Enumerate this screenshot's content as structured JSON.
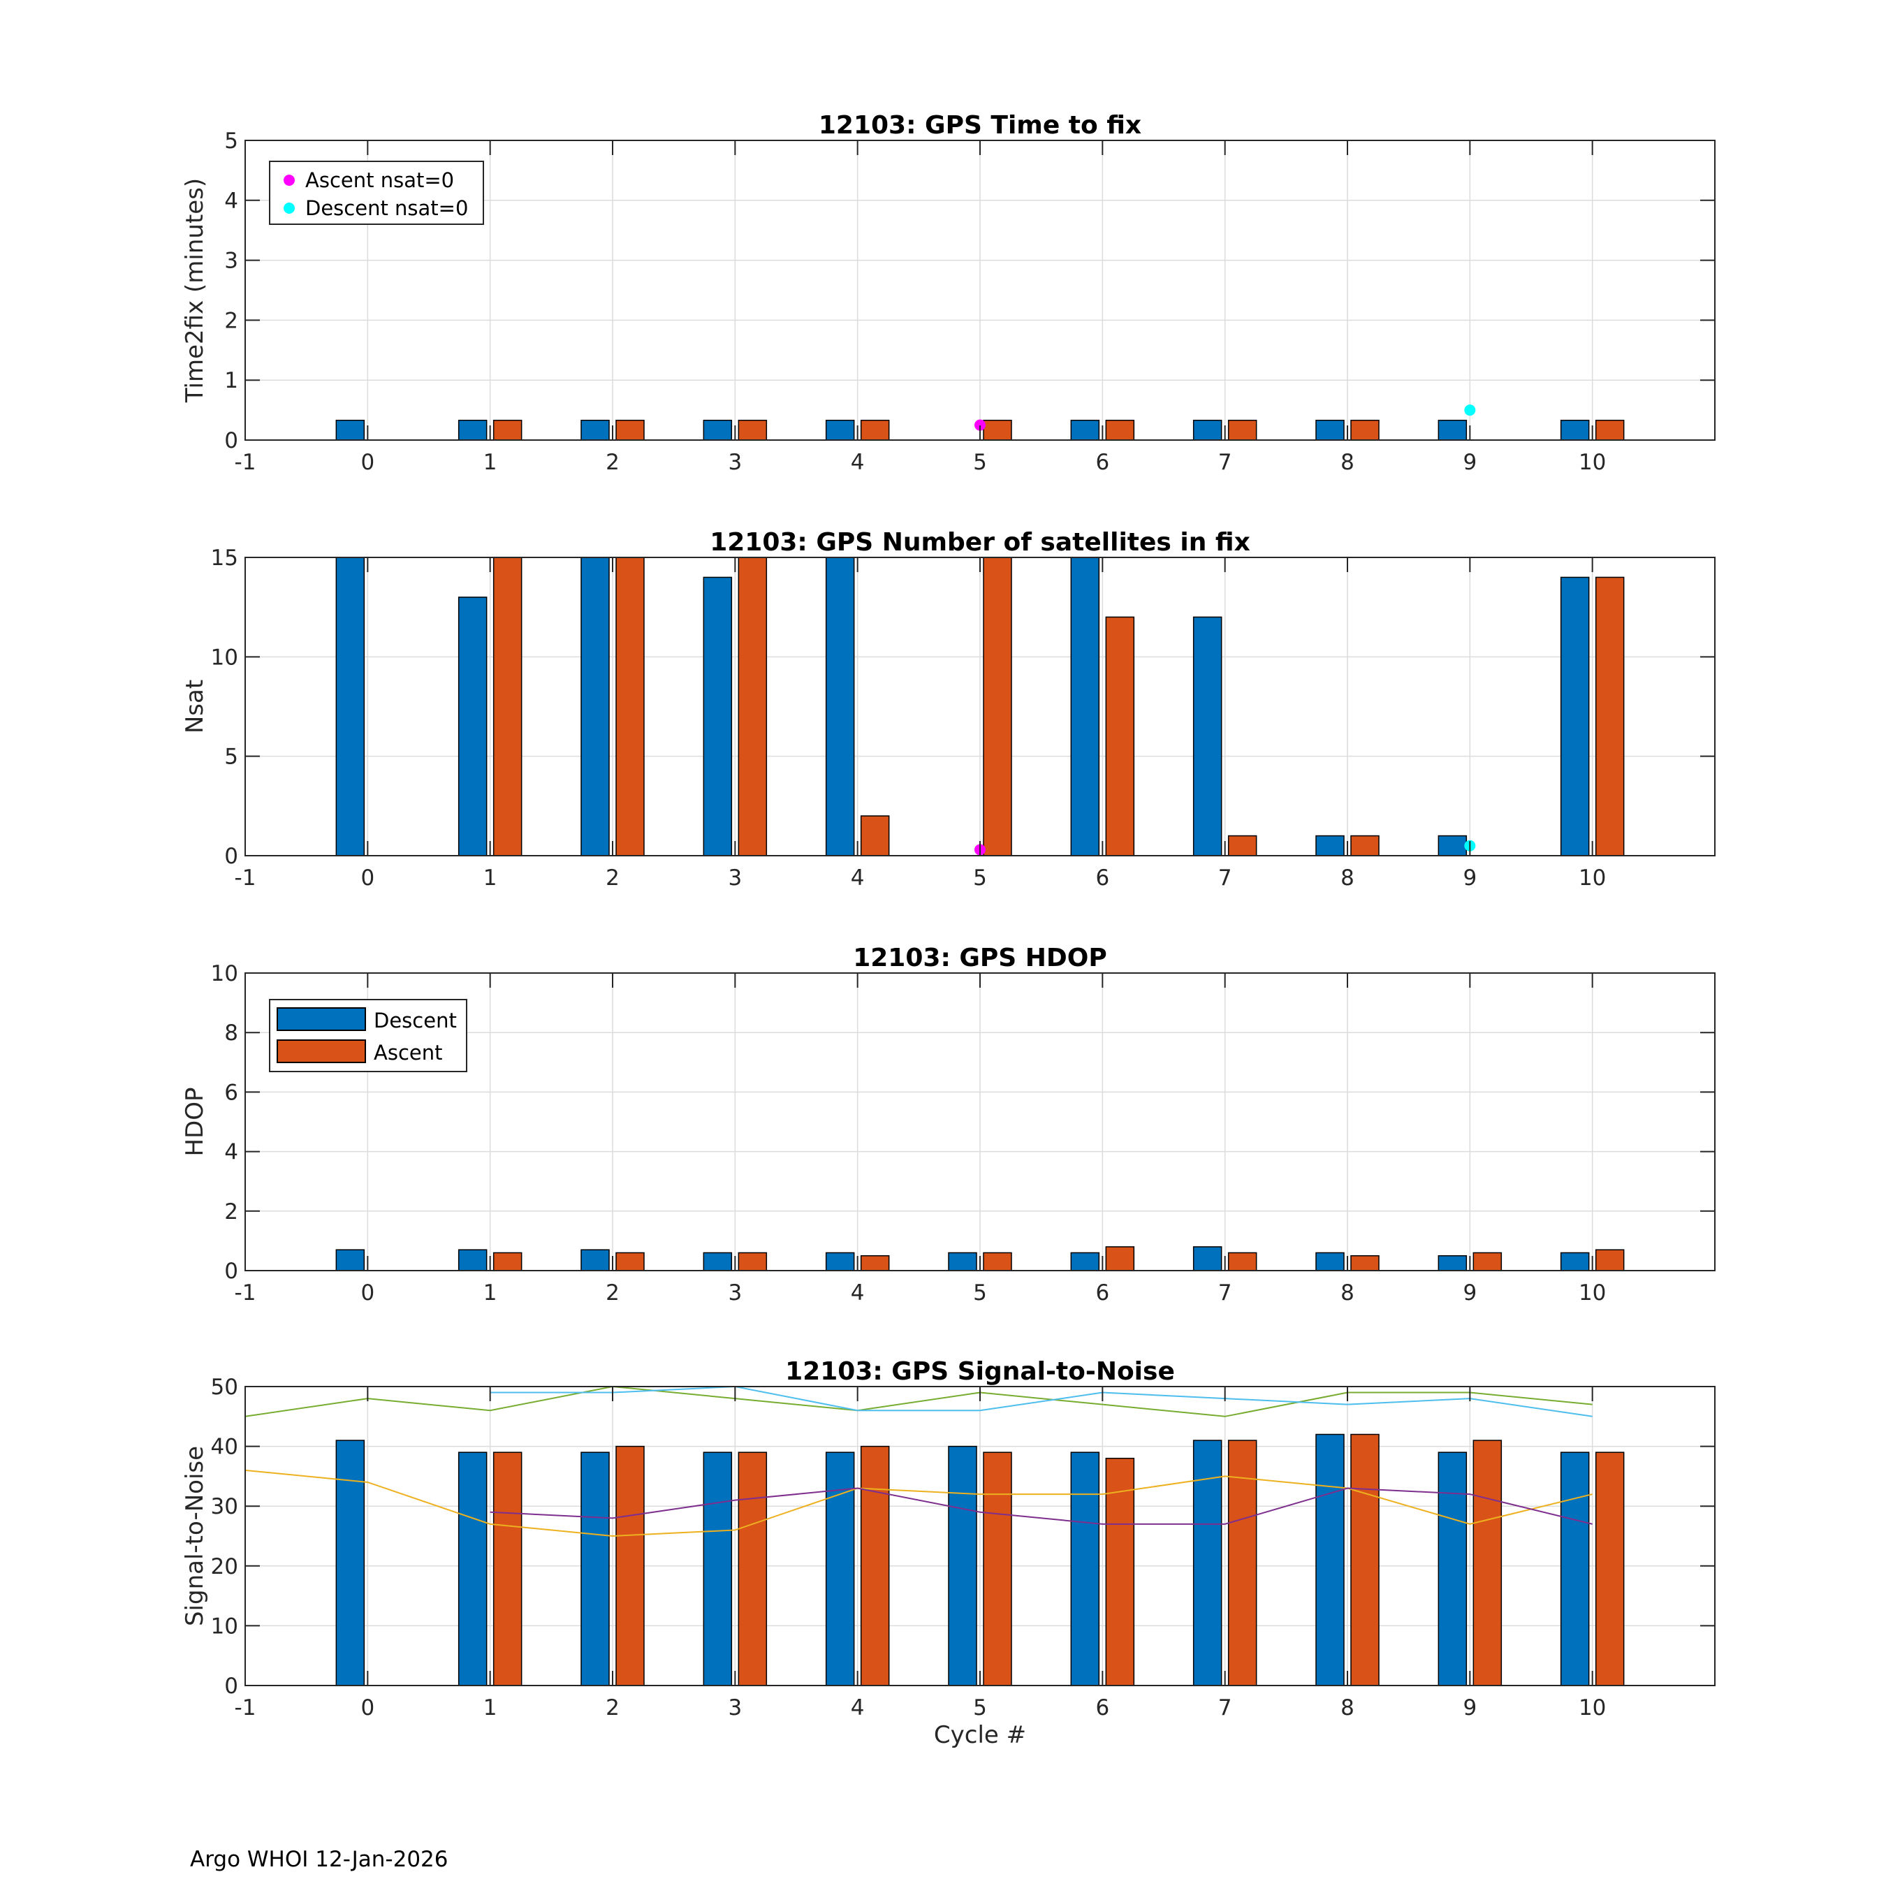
{
  "footer": "Argo WHOI 12-Jan-2026",
  "colors": {
    "descent": "#0072BD",
    "ascent": "#D95319",
    "ascent_nsat0": "#FF00FF",
    "descent_nsat0": "#00FFFF",
    "grid": "#dcdcdc",
    "snr_lines": [
      "#77AC30",
      "#4DBEEE",
      "#EDB120",
      "#7E2F8E"
    ]
  },
  "chart_data": [
    {
      "type": "bar",
      "title": "12103: GPS Time to fix",
      "ylabel": "Time2fix (minutes)",
      "xlabel": "",
      "xlim": [
        -1,
        11
      ],
      "ylim": [
        0,
        5
      ],
      "xticks": [
        -1,
        0,
        1,
        2,
        3,
        4,
        5,
        6,
        7,
        8,
        9,
        10
      ],
      "yticks": [
        0,
        1,
        2,
        3,
        4,
        5
      ],
      "grid": true,
      "x": [
        0,
        1,
        2,
        3,
        4,
        5,
        6,
        7,
        8,
        9,
        10
      ],
      "series": [
        {
          "name": "Descent",
          "values": [
            0.33,
            0.33,
            0.33,
            0.33,
            0.33,
            null,
            0.33,
            0.33,
            0.33,
            0.33,
            0.33
          ]
        },
        {
          "name": "Ascent",
          "values": [
            null,
            0.33,
            0.33,
            0.33,
            0.33,
            0.33,
            0.33,
            0.33,
            0.33,
            null,
            0.33
          ]
        }
      ],
      "markers": [
        {
          "name": "Ascent nsat=0",
          "x": [
            5
          ],
          "y": [
            0.25
          ],
          "color": "#FF00FF"
        },
        {
          "name": "Descent nsat=0",
          "x": [
            9
          ],
          "y": [
            0.5
          ],
          "color": "#00FFFF"
        }
      ],
      "legend": {
        "placement": "top-left",
        "entries": [
          "Ascent nsat=0",
          "Descent nsat=0"
        ],
        "kind": "markers"
      }
    },
    {
      "type": "bar",
      "title": "12103: GPS Number of satellites in fix",
      "ylabel": "Nsat",
      "xlabel": "",
      "xlim": [
        -1,
        11
      ],
      "ylim": [
        0,
        15
      ],
      "xticks": [
        -1,
        0,
        1,
        2,
        3,
        4,
        5,
        6,
        7,
        8,
        9,
        10
      ],
      "yticks": [
        0,
        5,
        10,
        15
      ],
      "grid": true,
      "x": [
        0,
        1,
        2,
        3,
        4,
        5,
        6,
        7,
        8,
        9,
        10
      ],
      "series": [
        {
          "name": "Descent",
          "values": [
            15,
            13,
            15,
            14,
            15,
            null,
            15,
            12,
            1,
            1,
            14
          ]
        },
        {
          "name": "Ascent",
          "values": [
            null,
            15,
            15,
            15,
            2,
            15,
            12,
            1,
            1,
            null,
            14
          ]
        }
      ],
      "markers": [
        {
          "name": "Ascent nsat=0",
          "x": [
            5
          ],
          "y": [
            0.3
          ],
          "color": "#FF00FF"
        },
        {
          "name": "Descent nsat=0",
          "x": [
            9
          ],
          "y": [
            0.5
          ],
          "color": "#00FFFF"
        }
      ]
    },
    {
      "type": "bar",
      "title": "12103: GPS HDOP",
      "ylabel": "HDOP",
      "xlabel": "",
      "xlim": [
        -1,
        11
      ],
      "ylim": [
        0,
        10
      ],
      "xticks": [
        -1,
        0,
        1,
        2,
        3,
        4,
        5,
        6,
        7,
        8,
        9,
        10
      ],
      "yticks": [
        0,
        2,
        4,
        6,
        8,
        10
      ],
      "grid": true,
      "x": [
        0,
        1,
        2,
        3,
        4,
        5,
        6,
        7,
        8,
        9,
        10
      ],
      "series": [
        {
          "name": "Descent",
          "values": [
            0.7,
            0.7,
            0.7,
            0.6,
            0.6,
            0.6,
            0.6,
            0.8,
            0.6,
            0.5,
            0.6
          ]
        },
        {
          "name": "Ascent",
          "values": [
            null,
            0.6,
            0.6,
            0.6,
            0.5,
            0.6,
            0.8,
            0.6,
            0.5,
            0.6,
            0.7
          ]
        }
      ],
      "legend": {
        "placement": "top-left",
        "entries": [
          "Descent",
          "Ascent"
        ],
        "kind": "bars"
      }
    },
    {
      "type": "bar",
      "title": "12103: GPS Signal-to-Noise",
      "ylabel": "Signal-to-Noise",
      "xlabel": "Cycle #",
      "xlim": [
        -1,
        11
      ],
      "ylim": [
        0,
        50
      ],
      "xticks": [
        -1,
        0,
        1,
        2,
        3,
        4,
        5,
        6,
        7,
        8,
        9,
        10
      ],
      "yticks": [
        0,
        10,
        20,
        30,
        40,
        50
      ],
      "grid": true,
      "x": [
        0,
        1,
        2,
        3,
        4,
        5,
        6,
        7,
        8,
        9,
        10
      ],
      "series": [
        {
          "name": "Descent",
          "values": [
            41,
            39,
            39,
            39,
            39,
            40,
            39,
            41,
            42,
            39,
            39
          ]
        },
        {
          "name": "Ascent",
          "values": [
            null,
            39,
            40,
            39,
            40,
            39,
            38,
            41,
            42,
            41,
            39
          ]
        }
      ],
      "lines": [
        {
          "x": [
            -1,
            0,
            1,
            2,
            3,
            4,
            5,
            6,
            7,
            8,
            9,
            10
          ],
          "y": [
            45,
            48,
            46,
            51,
            48,
            46,
            49,
            47,
            45,
            49,
            49,
            47
          ],
          "color": "#77AC30"
        },
        {
          "x": [
            1,
            2,
            3,
            4,
            5,
            6,
            7,
            8,
            9,
            10
          ],
          "y": [
            49,
            49,
            50,
            46,
            46,
            49,
            48,
            47,
            48,
            45
          ],
          "color": "#4DBEEE"
        },
        {
          "x": [
            -1,
            0,
            1,
            2,
            3,
            4,
            5,
            6,
            7,
            8,
            9,
            10
          ],
          "y": [
            36,
            34,
            27,
            25,
            26,
            33,
            32,
            32,
            35,
            33,
            27,
            32
          ],
          "color": "#EDB120"
        },
        {
          "x": [
            1,
            2,
            3,
            4,
            5,
            6,
            7,
            8,
            9,
            10
          ],
          "y": [
            29,
            28,
            31,
            33,
            29,
            27,
            27,
            33,
            32,
            27
          ],
          "color": "#7E2F8E"
        }
      ]
    }
  ]
}
